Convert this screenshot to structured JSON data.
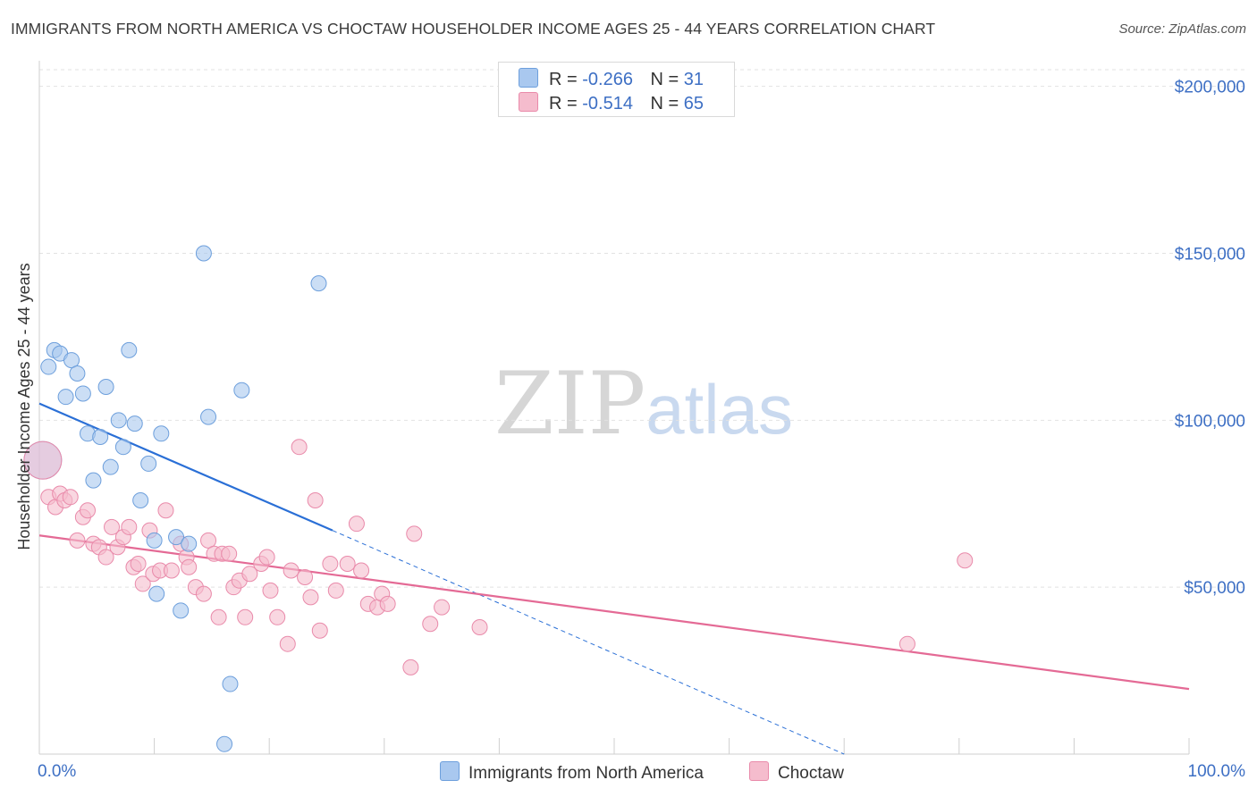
{
  "header": {
    "title": "IMMIGRANTS FROM NORTH AMERICA VS CHOCTAW HOUSEHOLDER INCOME AGES 25 - 44 YEARS CORRELATION CHART",
    "source": "Source: ZipAtlas.com"
  },
  "watermark": {
    "zip": "ZIP",
    "atlas": "atlas"
  },
  "stats": [
    {
      "r_label": "R =",
      "r_value": "-0.266",
      "n_label": "N =",
      "n_value": "31"
    },
    {
      "r_label": "R =",
      "r_value": "-0.514",
      "n_label": "N =",
      "n_value": "65"
    }
  ],
  "legend": [
    {
      "label": "Immigrants from North America"
    },
    {
      "label": "Choctaw"
    }
  ],
  "colors": {
    "series_a_fill": "#a9c8ef",
    "series_a_stroke": "#6d9fdc",
    "series_a_line": "#2a6fd6",
    "series_b_fill": "#f5bccd",
    "series_b_stroke": "#e98aaa",
    "series_b_line": "#e46a95",
    "tick_label": "#3d6fc4",
    "grid": "#e2e2e2"
  },
  "chart_data": {
    "type": "scatter",
    "title": "IMMIGRANTS FROM NORTH AMERICA VS CHOCTAW HOUSEHOLDER INCOME AGES 25 - 44 YEARS CORRELATION CHART",
    "xlabel": "",
    "ylabel": "Householder Income Ages 25 - 44 years",
    "xlim": [
      0,
      100
    ],
    "ylim": [
      0,
      205000
    ],
    "x_tick_labels": [
      "0.0%",
      "100.0%"
    ],
    "y_ticks": [
      50000,
      100000,
      150000,
      200000
    ],
    "y_tick_labels": [
      "$50,000",
      "$100,000",
      "$150,000",
      "$200,000"
    ],
    "series": [
      {
        "name": "Immigrants from North America",
        "trend": {
          "x0": 0,
          "y0": 105000,
          "x1": 25.5,
          "y1": 67000,
          "dash_to_x": 70,
          "dash_to_y": 0
        },
        "points": [
          {
            "x": 0.3,
            "y": 88000,
            "big": true
          },
          {
            "x": 0.8,
            "y": 116000
          },
          {
            "x": 1.3,
            "y": 121000
          },
          {
            "x": 1.8,
            "y": 120000
          },
          {
            "x": 2.3,
            "y": 107000
          },
          {
            "x": 2.8,
            "y": 118000
          },
          {
            "x": 3.3,
            "y": 114000
          },
          {
            "x": 3.8,
            "y": 108000
          },
          {
            "x": 4.2,
            "y": 96000
          },
          {
            "x": 4.7,
            "y": 82000
          },
          {
            "x": 5.3,
            "y": 95000
          },
          {
            "x": 5.8,
            "y": 110000
          },
          {
            "x": 6.2,
            "y": 86000
          },
          {
            "x": 6.9,
            "y": 100000
          },
          {
            "x": 7.3,
            "y": 92000
          },
          {
            "x": 7.8,
            "y": 121000
          },
          {
            "x": 8.3,
            "y": 99000
          },
          {
            "x": 8.8,
            "y": 76000
          },
          {
            "x": 9.5,
            "y": 87000
          },
          {
            "x": 10.0,
            "y": 64000
          },
          {
            "x": 10.2,
            "y": 48000
          },
          {
            "x": 10.6,
            "y": 96000
          },
          {
            "x": 11.9,
            "y": 65000
          },
          {
            "x": 12.3,
            "y": 43000
          },
          {
            "x": 13.0,
            "y": 63000
          },
          {
            "x": 14.3,
            "y": 150000
          },
          {
            "x": 14.7,
            "y": 101000
          },
          {
            "x": 16.1,
            "y": 3000
          },
          {
            "x": 16.6,
            "y": 21000
          },
          {
            "x": 17.6,
            "y": 109000
          },
          {
            "x": 24.3,
            "y": 141000
          }
        ]
      },
      {
        "name": "Choctaw",
        "trend": {
          "x0": 0,
          "y0": 65500,
          "x1": 100,
          "y1": 19500
        },
        "points": [
          {
            "x": 0.3,
            "y": 88000,
            "big": true
          },
          {
            "x": 0.8,
            "y": 77000
          },
          {
            "x": 1.4,
            "y": 74000
          },
          {
            "x": 1.8,
            "y": 78000
          },
          {
            "x": 2.2,
            "y": 76000
          },
          {
            "x": 2.7,
            "y": 77000
          },
          {
            "x": 3.3,
            "y": 64000
          },
          {
            "x": 3.8,
            "y": 71000
          },
          {
            "x": 4.2,
            "y": 73000
          },
          {
            "x": 4.7,
            "y": 63000
          },
          {
            "x": 5.2,
            "y": 62000
          },
          {
            "x": 5.8,
            "y": 59000
          },
          {
            "x": 6.3,
            "y": 68000
          },
          {
            "x": 6.8,
            "y": 62000
          },
          {
            "x": 7.3,
            "y": 65000
          },
          {
            "x": 7.8,
            "y": 68000
          },
          {
            "x": 8.2,
            "y": 56000
          },
          {
            "x": 8.6,
            "y": 57000
          },
          {
            "x": 9.0,
            "y": 51000
          },
          {
            "x": 9.6,
            "y": 67000
          },
          {
            "x": 9.9,
            "y": 54000
          },
          {
            "x": 10.5,
            "y": 55000
          },
          {
            "x": 11.0,
            "y": 73000
          },
          {
            "x": 11.5,
            "y": 55000
          },
          {
            "x": 12.3,
            "y": 63000
          },
          {
            "x": 12.8,
            "y": 59000
          },
          {
            "x": 13.0,
            "y": 56000
          },
          {
            "x": 13.6,
            "y": 50000
          },
          {
            "x": 14.3,
            "y": 48000
          },
          {
            "x": 14.7,
            "y": 64000
          },
          {
            "x": 15.2,
            "y": 60000
          },
          {
            "x": 15.6,
            "y": 41000
          },
          {
            "x": 15.9,
            "y": 60000
          },
          {
            "x": 16.5,
            "y": 60000
          },
          {
            "x": 16.9,
            "y": 50000
          },
          {
            "x": 17.4,
            "y": 52000
          },
          {
            "x": 17.9,
            "y": 41000
          },
          {
            "x": 18.3,
            "y": 54000
          },
          {
            "x": 19.3,
            "y": 57000
          },
          {
            "x": 19.8,
            "y": 59000
          },
          {
            "x": 20.1,
            "y": 49000
          },
          {
            "x": 20.7,
            "y": 41000
          },
          {
            "x": 21.6,
            "y": 33000
          },
          {
            "x": 21.9,
            "y": 55000
          },
          {
            "x": 22.6,
            "y": 92000
          },
          {
            "x": 23.1,
            "y": 53000
          },
          {
            "x": 23.6,
            "y": 47000
          },
          {
            "x": 24.0,
            "y": 76000
          },
          {
            "x": 24.4,
            "y": 37000
          },
          {
            "x": 25.3,
            "y": 57000
          },
          {
            "x": 25.8,
            "y": 49000
          },
          {
            "x": 26.8,
            "y": 57000
          },
          {
            "x": 27.6,
            "y": 69000
          },
          {
            "x": 28.0,
            "y": 55000
          },
          {
            "x": 28.6,
            "y": 45000
          },
          {
            "x": 29.4,
            "y": 44000
          },
          {
            "x": 29.8,
            "y": 48000
          },
          {
            "x": 30.3,
            "y": 45000
          },
          {
            "x": 32.3,
            "y": 26000
          },
          {
            "x": 32.6,
            "y": 66000
          },
          {
            "x": 34.0,
            "y": 39000
          },
          {
            "x": 35.0,
            "y": 44000
          },
          {
            "x": 38.3,
            "y": 38000
          },
          {
            "x": 75.5,
            "y": 33000
          },
          {
            "x": 80.5,
            "y": 58000
          }
        ]
      }
    ]
  }
}
